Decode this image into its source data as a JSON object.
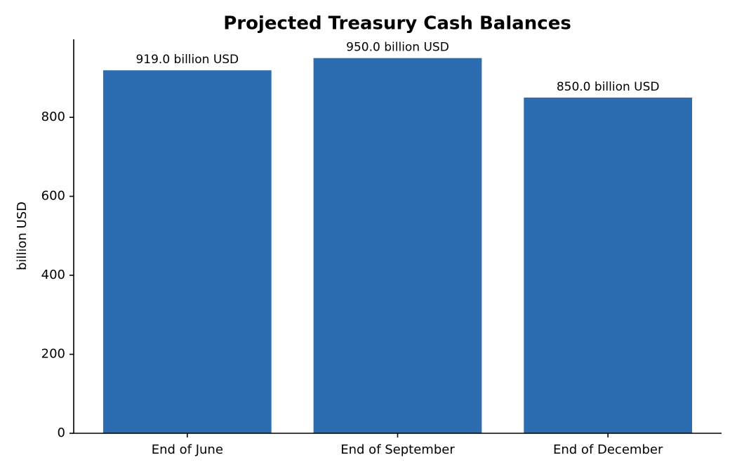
{
  "chart_data": {
    "type": "bar",
    "title": "Projected Treasury Cash Balances",
    "y_label": "billion USD",
    "categories": [
      "End of June",
      "End of September",
      "End of December"
    ],
    "values": [
      919.0,
      950.0,
      850.0
    ],
    "value_labels": [
      "919.0 billion USD",
      "950.0 billion USD",
      "850.0 billion USD"
    ],
    "color": "#2c6cb0",
    "ylim": [
      0,
      997.5
    ],
    "yticks": [
      0,
      200,
      400,
      600,
      800
    ],
    "grid": false
  }
}
